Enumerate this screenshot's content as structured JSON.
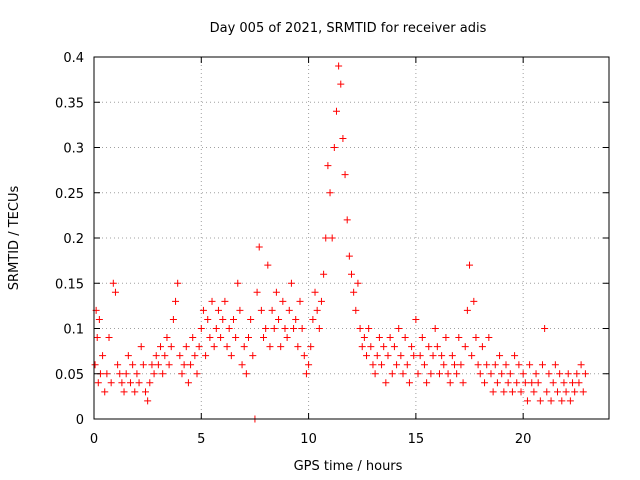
{
  "chart_data": {
    "type": "scatter",
    "title": "Day 005 of 2021, SRMTID for receiver adis",
    "xlabel": "GPS time / hours",
    "ylabel": "SRMTID / TECUs",
    "xlim": [
      0,
      24
    ],
    "ylim": [
      0,
      0.4
    ],
    "x_ticks": [
      0,
      5,
      10,
      15,
      20
    ],
    "x_tick_labels": [
      "0",
      "5",
      "10",
      "15",
      "20"
    ],
    "y_ticks": [
      0,
      0.05,
      0.1,
      0.15,
      0.2,
      0.25,
      0.3,
      0.35,
      0.4
    ],
    "y_tick_labels": [
      "0",
      "0.05",
      "0.1",
      "0.15",
      "0.2",
      "0.25",
      "0.3",
      "0.35",
      "0.4"
    ],
    "grid": true,
    "marker": "+",
    "series_color": "#ff0000",
    "series": [
      {
        "name": "SRMTID",
        "points": [
          [
            0.05,
            0.06
          ],
          [
            0.1,
            0.12
          ],
          [
            0.15,
            0.09
          ],
          [
            0.2,
            0.04
          ],
          [
            0.25,
            0.11
          ],
          [
            0.3,
            0.05
          ],
          [
            0.4,
            0.07
          ],
          [
            0.5,
            0.03
          ],
          [
            0.6,
            0.05
          ],
          [
            0.7,
            0.09
          ],
          [
            0.8,
            0.04
          ],
          [
            0.9,
            0.15
          ],
          [
            1.0,
            0.14
          ],
          [
            1.1,
            0.06
          ],
          [
            1.2,
            0.05
          ],
          [
            1.3,
            0.04
          ],
          [
            1.4,
            0.03
          ],
          [
            1.5,
            0.05
          ],
          [
            1.6,
            0.07
          ],
          [
            1.7,
            0.04
          ],
          [
            1.8,
            0.06
          ],
          [
            1.9,
            0.03
          ],
          [
            2.0,
            0.05
          ],
          [
            2.1,
            0.04
          ],
          [
            2.2,
            0.08
          ],
          [
            2.3,
            0.06
          ],
          [
            2.4,
            0.03
          ],
          [
            2.5,
            0.02
          ],
          [
            2.6,
            0.04
          ],
          [
            2.7,
            0.06
          ],
          [
            2.8,
            0.05
          ],
          [
            2.9,
            0.07
          ],
          [
            3.0,
            0.06
          ],
          [
            3.1,
            0.08
          ],
          [
            3.2,
            0.05
          ],
          [
            3.3,
            0.07
          ],
          [
            3.4,
            0.09
          ],
          [
            3.5,
            0.06
          ],
          [
            3.6,
            0.08
          ],
          [
            3.7,
            0.11
          ],
          [
            3.8,
            0.13
          ],
          [
            3.9,
            0.15
          ],
          [
            4.0,
            0.07
          ],
          [
            4.1,
            0.05
          ],
          [
            4.2,
            0.06
          ],
          [
            4.3,
            0.08
          ],
          [
            4.4,
            0.04
          ],
          [
            4.5,
            0.06
          ],
          [
            4.6,
            0.09
          ],
          [
            4.7,
            0.07
          ],
          [
            4.8,
            0.05
          ],
          [
            4.9,
            0.08
          ],
          [
            5.0,
            0.1
          ],
          [
            5.1,
            0.12
          ],
          [
            5.2,
            0.07
          ],
          [
            5.3,
            0.11
          ],
          [
            5.4,
            0.09
          ],
          [
            5.5,
            0.13
          ],
          [
            5.6,
            0.08
          ],
          [
            5.7,
            0.1
          ],
          [
            5.8,
            0.12
          ],
          [
            5.9,
            0.09
          ],
          [
            6.0,
            0.11
          ],
          [
            6.1,
            0.13
          ],
          [
            6.2,
            0.08
          ],
          [
            6.3,
            0.1
          ],
          [
            6.4,
            0.07
          ],
          [
            6.5,
            0.11
          ],
          [
            6.6,
            0.09
          ],
          [
            6.7,
            0.15
          ],
          [
            6.8,
            0.12
          ],
          [
            6.9,
            0.06
          ],
          [
            7.0,
            0.08
          ],
          [
            7.1,
            0.05
          ],
          [
            7.2,
            0.09
          ],
          [
            7.3,
            0.11
          ],
          [
            7.4,
            0.07
          ],
          [
            7.5,
            0.0
          ],
          [
            7.6,
            0.14
          ],
          [
            7.7,
            0.19
          ],
          [
            7.8,
            0.12
          ],
          [
            7.9,
            0.09
          ],
          [
            8.0,
            0.1
          ],
          [
            8.1,
            0.17
          ],
          [
            8.2,
            0.08
          ],
          [
            8.3,
            0.12
          ],
          [
            8.4,
            0.1
          ],
          [
            8.5,
            0.14
          ],
          [
            8.6,
            0.11
          ],
          [
            8.7,
            0.08
          ],
          [
            8.8,
            0.13
          ],
          [
            8.9,
            0.1
          ],
          [
            9.0,
            0.09
          ],
          [
            9.1,
            0.12
          ],
          [
            9.2,
            0.15
          ],
          [
            9.3,
            0.1
          ],
          [
            9.4,
            0.11
          ],
          [
            9.5,
            0.08
          ],
          [
            9.6,
            0.13
          ],
          [
            9.7,
            0.1
          ],
          [
            9.8,
            0.07
          ],
          [
            9.9,
            0.05
          ],
          [
            10.0,
            0.06
          ],
          [
            10.1,
            0.08
          ],
          [
            10.2,
            0.11
          ],
          [
            10.3,
            0.14
          ],
          [
            10.4,
            0.12
          ],
          [
            10.5,
            0.1
          ],
          [
            10.6,
            0.13
          ],
          [
            10.7,
            0.16
          ],
          [
            10.8,
            0.2
          ],
          [
            10.9,
            0.28
          ],
          [
            11.0,
            0.25
          ],
          [
            11.1,
            0.2
          ],
          [
            11.2,
            0.3
          ],
          [
            11.3,
            0.34
          ],
          [
            11.4,
            0.39
          ],
          [
            11.5,
            0.37
          ],
          [
            11.6,
            0.31
          ],
          [
            11.7,
            0.27
          ],
          [
            11.8,
            0.22
          ],
          [
            11.9,
            0.18
          ],
          [
            12.0,
            0.16
          ],
          [
            12.1,
            0.14
          ],
          [
            12.2,
            0.12
          ],
          [
            12.3,
            0.15
          ],
          [
            12.4,
            0.1
          ],
          [
            12.5,
            0.08
          ],
          [
            12.6,
            0.09
          ],
          [
            12.7,
            0.07
          ],
          [
            12.8,
            0.1
          ],
          [
            12.9,
            0.08
          ],
          [
            13.0,
            0.06
          ],
          [
            13.1,
            0.05
          ],
          [
            13.2,
            0.07
          ],
          [
            13.3,
            0.09
          ],
          [
            13.4,
            0.06
          ],
          [
            13.5,
            0.08
          ],
          [
            13.6,
            0.04
          ],
          [
            13.7,
            0.07
          ],
          [
            13.8,
            0.09
          ],
          [
            13.9,
            0.05
          ],
          [
            14.0,
            0.08
          ],
          [
            14.1,
            0.06
          ],
          [
            14.2,
            0.1
          ],
          [
            14.3,
            0.07
          ],
          [
            14.4,
            0.05
          ],
          [
            14.5,
            0.09
          ],
          [
            14.6,
            0.06
          ],
          [
            14.7,
            0.04
          ],
          [
            14.8,
            0.08
          ],
          [
            14.9,
            0.07
          ],
          [
            15.0,
            0.11
          ],
          [
            15.1,
            0.05
          ],
          [
            15.2,
            0.07
          ],
          [
            15.3,
            0.09
          ],
          [
            15.4,
            0.06
          ],
          [
            15.5,
            0.04
          ],
          [
            15.6,
            0.08
          ],
          [
            15.7,
            0.05
          ],
          [
            15.8,
            0.07
          ],
          [
            15.9,
            0.1
          ],
          [
            16.0,
            0.08
          ],
          [
            16.1,
            0.05
          ],
          [
            16.2,
            0.07
          ],
          [
            16.3,
            0.06
          ],
          [
            16.4,
            0.09
          ],
          [
            16.5,
            0.05
          ],
          [
            16.6,
            0.04
          ],
          [
            16.7,
            0.07
          ],
          [
            16.8,
            0.06
          ],
          [
            16.9,
            0.05
          ],
          [
            17.0,
            0.09
          ],
          [
            17.1,
            0.06
          ],
          [
            17.2,
            0.04
          ],
          [
            17.3,
            0.08
          ],
          [
            17.4,
            0.12
          ],
          [
            17.5,
            0.17
          ],
          [
            17.6,
            0.07
          ],
          [
            17.7,
            0.13
          ],
          [
            17.8,
            0.09
          ],
          [
            17.9,
            0.06
          ],
          [
            18.0,
            0.05
          ],
          [
            18.1,
            0.08
          ],
          [
            18.2,
            0.04
          ],
          [
            18.3,
            0.06
          ],
          [
            18.4,
            0.09
          ],
          [
            18.5,
            0.05
          ],
          [
            18.6,
            0.03
          ],
          [
            18.7,
            0.06
          ],
          [
            18.8,
            0.04
          ],
          [
            18.9,
            0.07
          ],
          [
            19.0,
            0.05
          ],
          [
            19.1,
            0.03
          ],
          [
            19.2,
            0.06
          ],
          [
            19.3,
            0.04
          ],
          [
            19.4,
            0.05
          ],
          [
            19.5,
            0.03
          ],
          [
            19.6,
            0.07
          ],
          [
            19.7,
            0.04
          ],
          [
            19.8,
            0.06
          ],
          [
            19.9,
            0.03
          ],
          [
            20.0,
            0.05
          ],
          [
            20.1,
            0.04
          ],
          [
            20.2,
            0.02
          ],
          [
            20.3,
            0.06
          ],
          [
            20.4,
            0.04
          ],
          [
            20.5,
            0.03
          ],
          [
            20.6,
            0.05
          ],
          [
            20.7,
            0.04
          ],
          [
            20.8,
            0.02
          ],
          [
            20.9,
            0.06
          ],
          [
            21.0,
            0.1
          ],
          [
            21.1,
            0.03
          ],
          [
            21.2,
            0.05
          ],
          [
            21.3,
            0.02
          ],
          [
            21.4,
            0.04
          ],
          [
            21.5,
            0.06
          ],
          [
            21.6,
            0.03
          ],
          [
            21.7,
            0.05
          ],
          [
            21.8,
            0.02
          ],
          [
            21.9,
            0.04
          ],
          [
            22.0,
            0.03
          ],
          [
            22.1,
            0.05
          ],
          [
            22.2,
            0.02
          ],
          [
            22.3,
            0.04
          ],
          [
            22.4,
            0.03
          ],
          [
            22.5,
            0.05
          ],
          [
            22.6,
            0.04
          ],
          [
            22.7,
            0.06
          ],
          [
            22.8,
            0.03
          ],
          [
            22.9,
            0.05
          ]
        ]
      }
    ]
  }
}
